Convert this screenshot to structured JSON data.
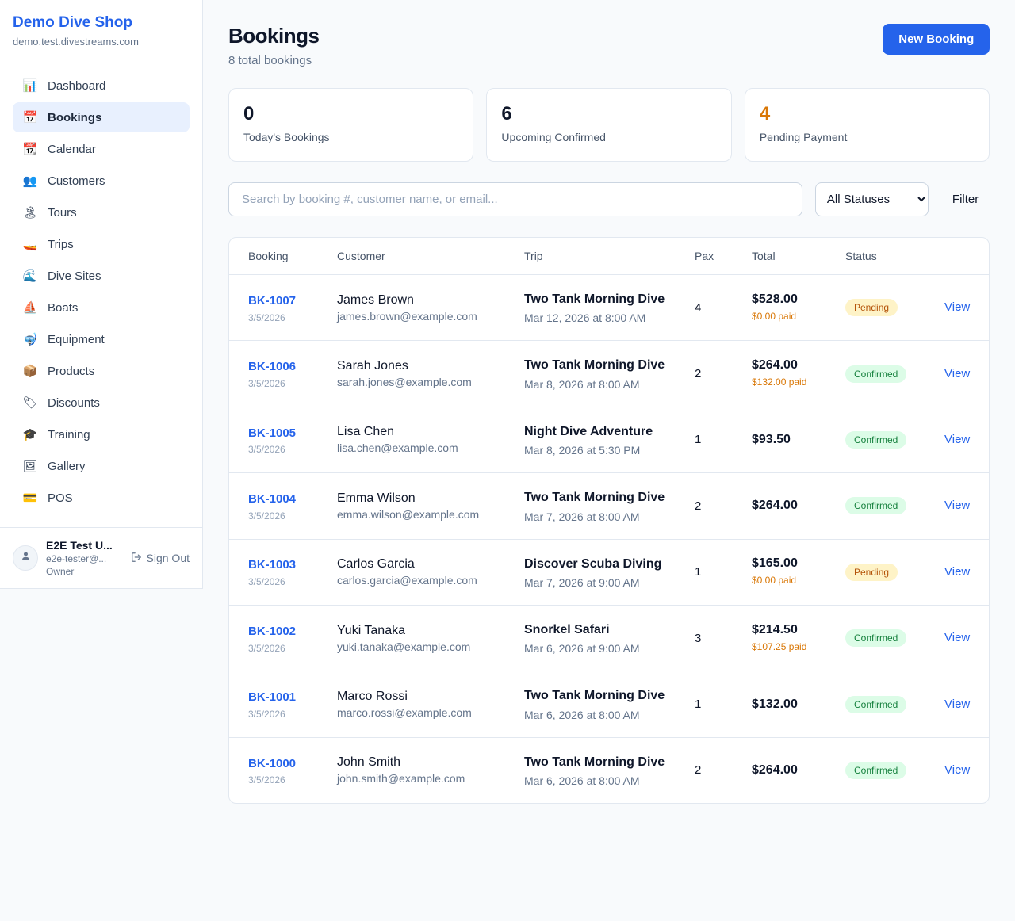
{
  "sidebar": {
    "shop_name": "Demo Dive Shop",
    "shop_domain": "demo.test.divestreams.com",
    "items": [
      {
        "label": "Dashboard",
        "icon": "📊",
        "icon_name": "dashboard-icon",
        "active": false
      },
      {
        "label": "Bookings",
        "icon": "📅",
        "icon_name": "bookings-icon",
        "active": true
      },
      {
        "label": "Calendar",
        "icon": "📆",
        "icon_name": "calendar-icon",
        "active": false
      },
      {
        "label": "Customers",
        "icon": "👥",
        "icon_name": "customers-icon",
        "active": false
      },
      {
        "label": "Tours",
        "icon": "🏝",
        "icon_name": "tours-icon",
        "active": false
      },
      {
        "label": "Trips",
        "icon": "🚤",
        "icon_name": "trips-icon",
        "active": false
      },
      {
        "label": "Dive Sites",
        "icon": "🌊",
        "icon_name": "dive-sites-icon",
        "active": false
      },
      {
        "label": "Boats",
        "icon": "⛵",
        "icon_name": "boats-icon",
        "active": false
      },
      {
        "label": "Equipment",
        "icon": "🤿",
        "icon_name": "equipment-icon",
        "active": false
      },
      {
        "label": "Products",
        "icon": "📦",
        "icon_name": "products-icon",
        "active": false
      },
      {
        "label": "Discounts",
        "icon": "🏷",
        "icon_name": "discounts-icon",
        "active": false
      },
      {
        "label": "Training",
        "icon": "🎓",
        "icon_name": "training-icon",
        "active": false
      },
      {
        "label": "Gallery",
        "icon": "🖼",
        "icon_name": "gallery-icon",
        "active": false
      },
      {
        "label": "POS",
        "icon": "💳",
        "icon_name": "pos-icon",
        "active": false
      }
    ],
    "user": {
      "name": "E2E Test U...",
      "email": "e2e-tester@...",
      "role": "Owner",
      "sign_out_label": "Sign Out"
    }
  },
  "header": {
    "title": "Bookings",
    "subtitle": "8 total bookings",
    "new_booking_label": "New Booking"
  },
  "stats": [
    {
      "value": "0",
      "label": "Today's Bookings",
      "value_color": "#0f172a"
    },
    {
      "value": "6",
      "label": "Upcoming Confirmed",
      "value_color": "#0f172a"
    },
    {
      "value": "4",
      "label": "Pending Payment",
      "value_color": "#d97706"
    }
  ],
  "filters": {
    "search_placeholder": "Search by booking #, customer name, or email...",
    "status_selected": "All Statuses",
    "filter_label": "Filter"
  },
  "table": {
    "headers": [
      "Booking",
      "Customer",
      "Trip",
      "Pax",
      "Total",
      "Status"
    ],
    "rows": [
      {
        "booking_id": "BK-1007",
        "booking_date": "3/5/2026",
        "customer_name": "James Brown",
        "customer_email": "james.brown@example.com",
        "trip_name": "Two Tank Morning Dive",
        "trip_time": "Mar 12, 2026 at 8:00 AM",
        "pax": "4",
        "total": "$528.00",
        "paid": "$0.00 paid",
        "status": "Pending",
        "view": "View"
      },
      {
        "booking_id": "BK-1006",
        "booking_date": "3/5/2026",
        "customer_name": "Sarah Jones",
        "customer_email": "sarah.jones@example.com",
        "trip_name": "Two Tank Morning Dive",
        "trip_time": "Mar 8, 2026 at 8:00 AM",
        "pax": "2",
        "total": "$264.00",
        "paid": "$132.00 paid",
        "status": "Confirmed",
        "view": "View"
      },
      {
        "booking_id": "BK-1005",
        "booking_date": "3/5/2026",
        "customer_name": "Lisa Chen",
        "customer_email": "lisa.chen@example.com",
        "trip_name": "Night Dive Adventure",
        "trip_time": "Mar 8, 2026 at 5:30 PM",
        "pax": "1",
        "total": "$93.50",
        "paid": "",
        "status": "Confirmed",
        "view": "View"
      },
      {
        "booking_id": "BK-1004",
        "booking_date": "3/5/2026",
        "customer_name": "Emma Wilson",
        "customer_email": "emma.wilson@example.com",
        "trip_name": "Two Tank Morning Dive",
        "trip_time": "Mar 7, 2026 at 8:00 AM",
        "pax": "2",
        "total": "$264.00",
        "paid": "",
        "status": "Confirmed",
        "view": "View"
      },
      {
        "booking_id": "BK-1003",
        "booking_date": "3/5/2026",
        "customer_name": "Carlos Garcia",
        "customer_email": "carlos.garcia@example.com",
        "trip_name": "Discover Scuba Diving",
        "trip_time": "Mar 7, 2026 at 9:00 AM",
        "pax": "1",
        "total": "$165.00",
        "paid": "$0.00 paid",
        "status": "Pending",
        "view": "View"
      },
      {
        "booking_id": "BK-1002",
        "booking_date": "3/5/2026",
        "customer_name": "Yuki Tanaka",
        "customer_email": "yuki.tanaka@example.com",
        "trip_name": "Snorkel Safari",
        "trip_time": "Mar 6, 2026 at 9:00 AM",
        "pax": "3",
        "total": "$214.50",
        "paid": "$107.25 paid",
        "status": "Confirmed",
        "view": "View"
      },
      {
        "booking_id": "BK-1001",
        "booking_date": "3/5/2026",
        "customer_name": "Marco Rossi",
        "customer_email": "marco.rossi@example.com",
        "trip_name": "Two Tank Morning Dive",
        "trip_time": "Mar 6, 2026 at 8:00 AM",
        "pax": "1",
        "total": "$132.00",
        "paid": "",
        "status": "Confirmed",
        "view": "View"
      },
      {
        "booking_id": "BK-1000",
        "booking_date": "3/5/2026",
        "customer_name": "John Smith",
        "customer_email": "john.smith@example.com",
        "trip_name": "Two Tank Morning Dive",
        "trip_time": "Mar 6, 2026 at 8:00 AM",
        "pax": "2",
        "total": "$264.00",
        "paid": "",
        "status": "Confirmed",
        "view": "View"
      }
    ]
  }
}
